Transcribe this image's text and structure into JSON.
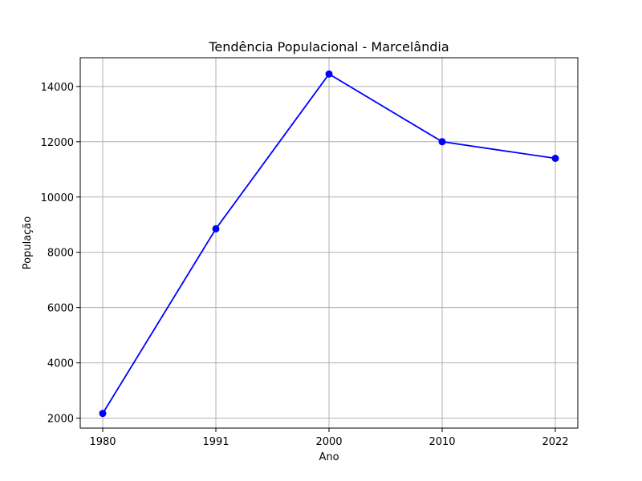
{
  "chart_data": {
    "type": "line",
    "title": "Tendência Populacional - Marcelândia",
    "xlabel": "Ano",
    "ylabel": "População",
    "categories": [
      "1980",
      "1991",
      "2000",
      "2010",
      "2022"
    ],
    "series": [
      {
        "values": [
          2170,
          8850,
          14450,
          12000,
          11400
        ],
        "color": "#0000ff",
        "marker": "circle"
      }
    ],
    "yticks": [
      2000,
      4000,
      6000,
      8000,
      10000,
      12000,
      14000
    ],
    "ylim": [
      1640,
      15040
    ],
    "grid": true
  }
}
